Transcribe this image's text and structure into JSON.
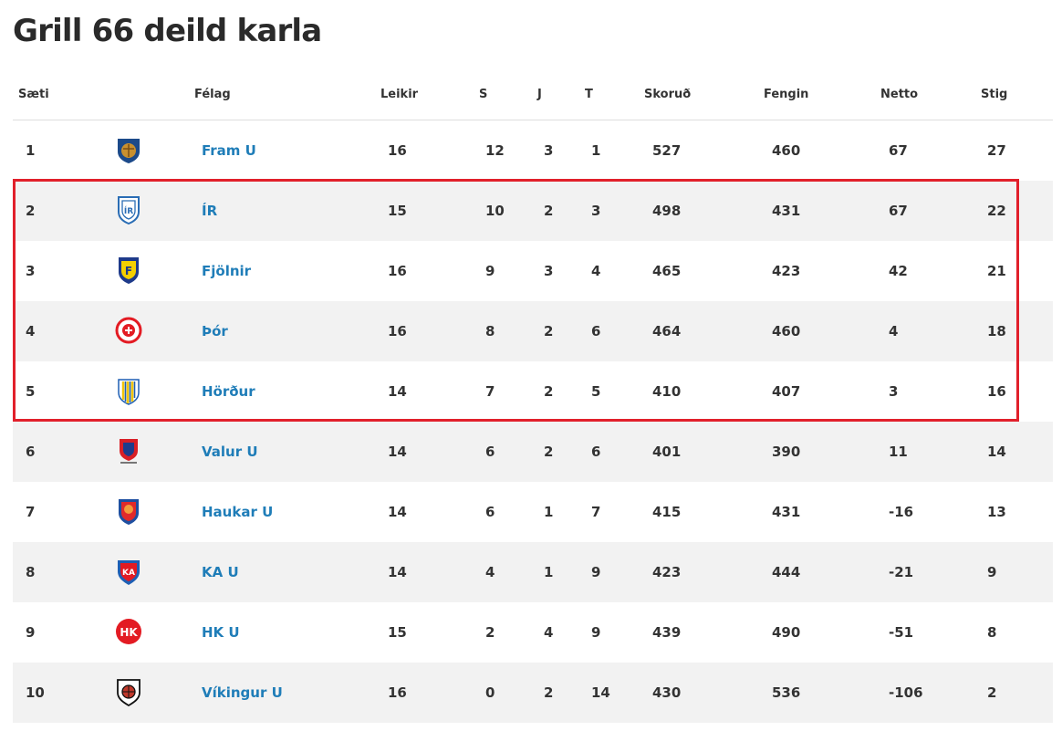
{
  "title": "Grill 66 deild karla",
  "headers": {
    "pos": "Sæti",
    "club": "Félag",
    "games": "Leikir",
    "wins": "S",
    "draws": "J",
    "losses": "T",
    "scored": "Skoruð",
    "conceded": "Fengin",
    "net": "Netto",
    "points": "Stig"
  },
  "rows": [
    {
      "pos": "1",
      "club": "Fram U",
      "games": "16",
      "wins": "12",
      "draws": "3",
      "losses": "1",
      "scored": "527",
      "conceded": "460",
      "net": "67",
      "points": "27",
      "logo": "fram-logo-icon"
    },
    {
      "pos": "2",
      "club": "ÍR",
      "games": "15",
      "wins": "10",
      "draws": "2",
      "losses": "3",
      "scored": "498",
      "conceded": "431",
      "net": "67",
      "points": "22",
      "logo": "ir-logo-icon"
    },
    {
      "pos": "3",
      "club": "Fjölnir",
      "games": "16",
      "wins": "9",
      "draws": "3",
      "losses": "4",
      "scored": "465",
      "conceded": "423",
      "net": "42",
      "points": "21",
      "logo": "fjolnir-logo-icon"
    },
    {
      "pos": "4",
      "club": "Þór",
      "games": "16",
      "wins": "8",
      "draws": "2",
      "losses": "6",
      "scored": "464",
      "conceded": "460",
      "net": "4",
      "points": "18",
      "logo": "thor-logo-icon"
    },
    {
      "pos": "5",
      "club": "Hörður",
      "games": "14",
      "wins": "7",
      "draws": "2",
      "losses": "5",
      "scored": "410",
      "conceded": "407",
      "net": "3",
      "points": "16",
      "logo": "hordur-logo-icon"
    },
    {
      "pos": "6",
      "club": "Valur U",
      "games": "14",
      "wins": "6",
      "draws": "2",
      "losses": "6",
      "scored": "401",
      "conceded": "390",
      "net": "11",
      "points": "14",
      "logo": "valur-logo-icon"
    },
    {
      "pos": "7",
      "club": "Haukar U",
      "games": "14",
      "wins": "6",
      "draws": "1",
      "losses": "7",
      "scored": "415",
      "conceded": "431",
      "net": "-16",
      "points": "13",
      "logo": "haukar-logo-icon"
    },
    {
      "pos": "8",
      "club": "KA U",
      "games": "14",
      "wins": "4",
      "draws": "1",
      "losses": "9",
      "scored": "423",
      "conceded": "444",
      "net": "-21",
      "points": "9",
      "logo": "ka-logo-icon"
    },
    {
      "pos": "9",
      "club": "HK U",
      "games": "15",
      "wins": "2",
      "draws": "4",
      "losses": "9",
      "scored": "439",
      "conceded": "490",
      "net": "-51",
      "points": "8",
      "logo": "hk-logo-icon"
    },
    {
      "pos": "10",
      "club": "Víkingur U",
      "games": "16",
      "wins": "0",
      "draws": "2",
      "losses": "14",
      "scored": "430",
      "conceded": "536",
      "net": "-106",
      "points": "2",
      "logo": "vikingur-logo-icon"
    }
  ],
  "colors": {
    "link": "#1f7db8",
    "highlight": "#e1202b",
    "alt_row": "#f2f2f2"
  }
}
